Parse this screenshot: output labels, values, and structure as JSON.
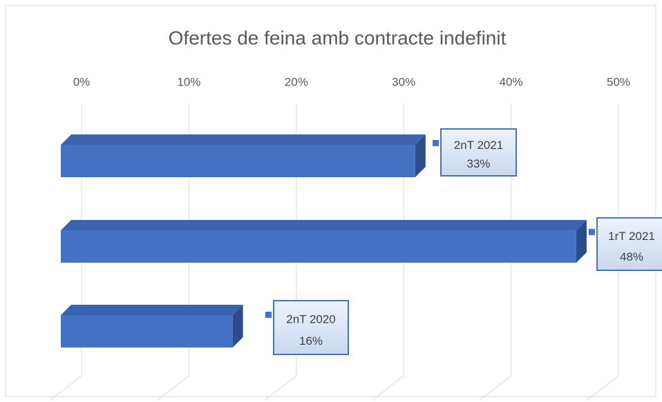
{
  "chart_data": {
    "type": "bar",
    "orientation": "horizontal",
    "style": "3d",
    "title": "Ofertes de feina amb contracte indefinit",
    "categories": [
      "2nT 2021",
      "1rT 2021",
      "2nT 2020"
    ],
    "values": [
      33,
      48,
      16
    ],
    "value_labels": [
      "33%",
      "48%",
      "16%"
    ],
    "color": "#4472c4",
    "xlim": [
      0,
      50
    ],
    "xticks": [
      {
        "value": 0,
        "label": "0%"
      },
      {
        "value": 10,
        "label": "10%"
      },
      {
        "value": 20,
        "label": "20%"
      },
      {
        "value": 30,
        "label": "30%"
      },
      {
        "value": 40,
        "label": "40%"
      },
      {
        "value": 50,
        "label": "50%"
      }
    ],
    "grid": true
  }
}
